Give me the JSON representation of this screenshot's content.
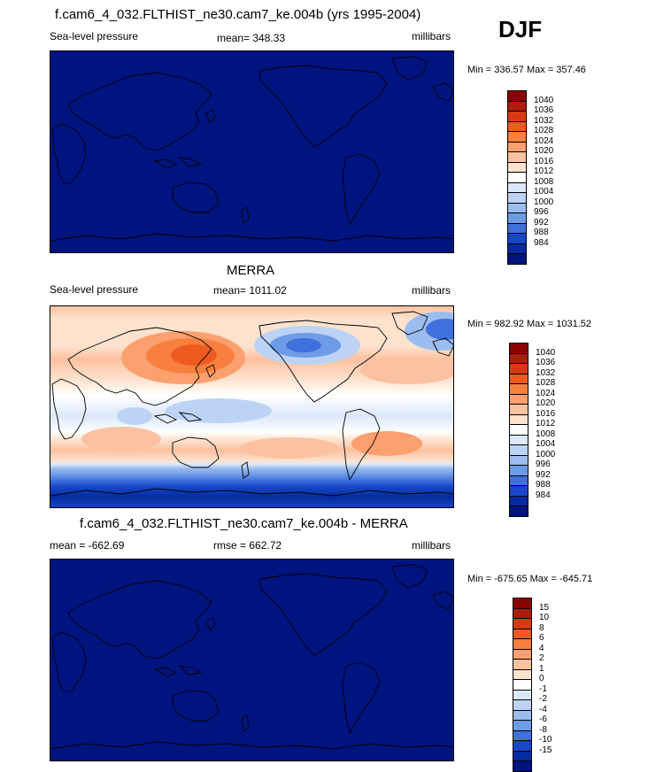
{
  "season": "DJF",
  "panels": [
    {
      "title": "f.cam6_4_032.FLTHIST_ne30.cam7_ke.004b (yrs 1995-2004)",
      "left": "Sea-level pressure",
      "center": "mean= 348.33",
      "right": "millibars",
      "minmax": "Min = 336.57 Max = 357.46"
    },
    {
      "title": "MERRA",
      "left": "Sea-level pressure",
      "center": "mean= 1011.02",
      "right": "millibars",
      "minmax": "Min = 982.92 Max = 1031.52"
    },
    {
      "title": "f.cam6_4_032.FLTHIST_ne30.cam7_ke.004b - MERRA",
      "left": "mean = -662.69",
      "center": "rmse = 662.72",
      "right": "millibars",
      "minmax": "Min = -675.65 Max = -645.71"
    }
  ],
  "colorbars": {
    "slp": {
      "labels": [
        "1040",
        "1036",
        "1032",
        "1028",
        "1024",
        "1020",
        "1016",
        "1012",
        "1008",
        "1004",
        "1000",
        "996",
        "992",
        "988",
        "984"
      ],
      "colors": [
        "#8b0000",
        "#b01c0b",
        "#d53a14",
        "#ef5a21",
        "#f8803f",
        "#fba06e",
        "#fcc1a0",
        "#fde2cd",
        "#ffffff",
        "#dbe8fa",
        "#bcd3f5",
        "#9bbcef",
        "#6d9be6",
        "#3f70dc",
        "#1747c8",
        "#062ba0",
        "#001480"
      ]
    },
    "diff": {
      "labels": [
        "15",
        "10",
        "8",
        "6",
        "4",
        "2",
        "1",
        "0",
        "-1",
        "-2",
        "-4",
        "-6",
        "-8",
        "-10",
        "-15"
      ],
      "colors": [
        "#8b0000",
        "#b01c0b",
        "#d53a14",
        "#ef5a21",
        "#f8803f",
        "#fba06e",
        "#fcc1a0",
        "#fde2cd",
        "#ffffff",
        "#dbe8fa",
        "#bcd3f5",
        "#9bbcef",
        "#6d9be6",
        "#3f70dc",
        "#1747c8",
        "#062ba0",
        "#001480"
      ]
    }
  }
}
